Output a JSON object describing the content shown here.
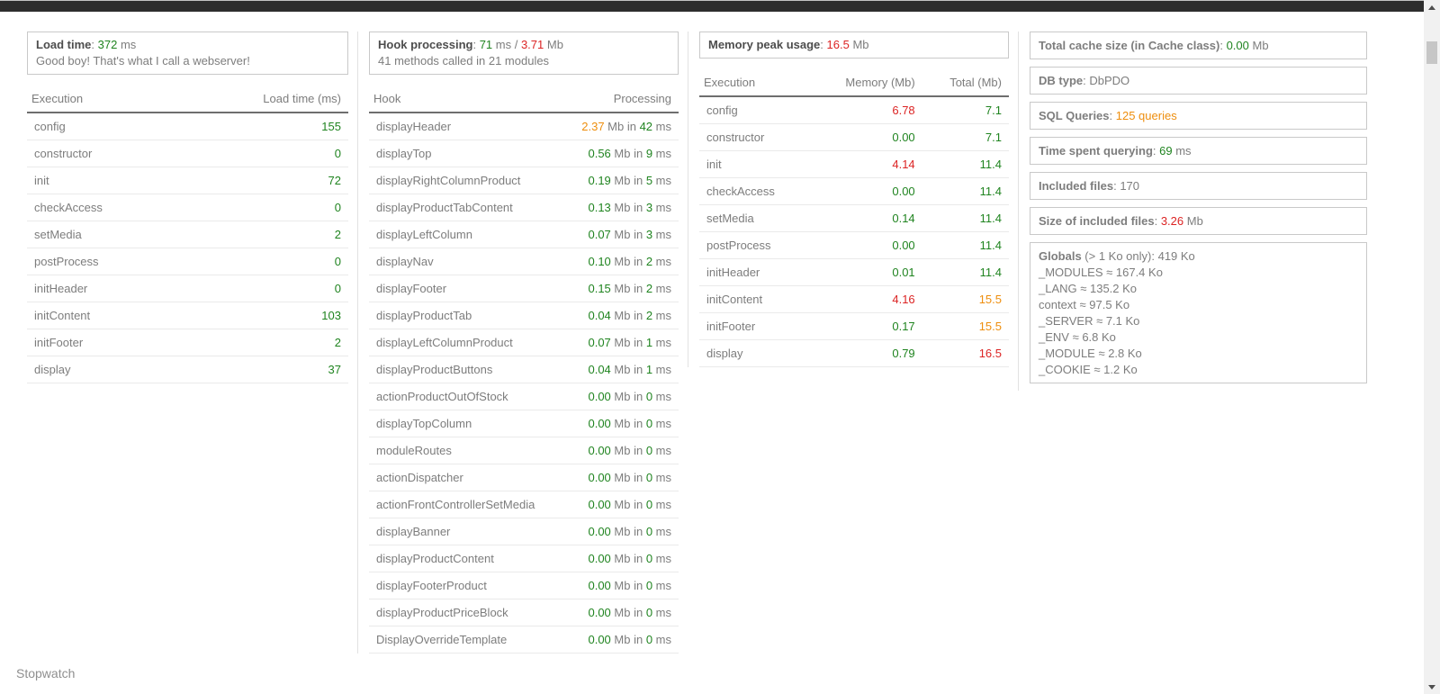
{
  "colors": {
    "green": "#208420",
    "red": "#dc2424",
    "orange": "#ee8e0e",
    "text_gray": "#7d7d7d",
    "label_gray": "#4d4d4d",
    "topbar": "#2d2d2d"
  },
  "load_panel": {
    "summary": {
      "label": "Load time",
      "parts": [
        {
          "text": ": ",
          "color": "gray"
        },
        {
          "text": "372",
          "color": "green"
        },
        {
          "text": " ms",
          "color": "gray"
        }
      ],
      "note": "Good boy! That's what I call a webserver!"
    },
    "table": {
      "headers": [
        "Execution",
        "Load time (ms)"
      ],
      "rows": [
        {
          "name": "config",
          "value": "155",
          "color": "green"
        },
        {
          "name": "constructor",
          "value": "0",
          "color": "green"
        },
        {
          "name": "init",
          "value": "72",
          "color": "green"
        },
        {
          "name": "checkAccess",
          "value": "0",
          "color": "green"
        },
        {
          "name": "setMedia",
          "value": "2",
          "color": "green"
        },
        {
          "name": "postProcess",
          "value": "0",
          "color": "green"
        },
        {
          "name": "initHeader",
          "value": "0",
          "color": "green"
        },
        {
          "name": "initContent",
          "value": "103",
          "color": "green"
        },
        {
          "name": "initFooter",
          "value": "2",
          "color": "green"
        },
        {
          "name": "display",
          "value": "37",
          "color": "green"
        }
      ]
    }
  },
  "hook_panel": {
    "summary": {
      "label": "Hook processing",
      "parts": [
        {
          "text": ": ",
          "color": "gray"
        },
        {
          "text": "71",
          "color": "green"
        },
        {
          "text": " ms / ",
          "color": "gray"
        },
        {
          "text": "3.71",
          "color": "red"
        },
        {
          "text": " Mb",
          "color": "gray"
        }
      ],
      "note": "41 methods called in 21 modules"
    },
    "mb_in": " Mb in ",
    "ms": " ms",
    "table": {
      "headers": [
        "Hook",
        "Processing"
      ],
      "rows": [
        {
          "name": "displayHeader",
          "mem": "2.37",
          "mem_color": "orange",
          "time": "42",
          "time_color": "green"
        },
        {
          "name": "displayTop",
          "mem": "0.56",
          "mem_color": "green",
          "time": "9",
          "time_color": "green"
        },
        {
          "name": "displayRightColumnProduct",
          "mem": "0.19",
          "mem_color": "green",
          "time": "5",
          "time_color": "green"
        },
        {
          "name": "displayProductTabContent",
          "mem": "0.13",
          "mem_color": "green",
          "time": "3",
          "time_color": "green"
        },
        {
          "name": "displayLeftColumn",
          "mem": "0.07",
          "mem_color": "green",
          "time": "3",
          "time_color": "green"
        },
        {
          "name": "displayNav",
          "mem": "0.10",
          "mem_color": "green",
          "time": "2",
          "time_color": "green"
        },
        {
          "name": "displayFooter",
          "mem": "0.15",
          "mem_color": "green",
          "time": "2",
          "time_color": "green"
        },
        {
          "name": "displayProductTab",
          "mem": "0.04",
          "mem_color": "green",
          "time": "2",
          "time_color": "green"
        },
        {
          "name": "displayLeftColumnProduct",
          "mem": "0.07",
          "mem_color": "green",
          "time": "1",
          "time_color": "green"
        },
        {
          "name": "displayProductButtons",
          "mem": "0.04",
          "mem_color": "green",
          "time": "1",
          "time_color": "green"
        },
        {
          "name": "actionProductOutOfStock",
          "mem": "0.00",
          "mem_color": "green",
          "time": "0",
          "time_color": "green"
        },
        {
          "name": "displayTopColumn",
          "mem": "0.00",
          "mem_color": "green",
          "time": "0",
          "time_color": "green"
        },
        {
          "name": "moduleRoutes",
          "mem": "0.00",
          "mem_color": "green",
          "time": "0",
          "time_color": "green"
        },
        {
          "name": "actionDispatcher",
          "mem": "0.00",
          "mem_color": "green",
          "time": "0",
          "time_color": "green"
        },
        {
          "name": "actionFrontControllerSetMedia",
          "mem": "0.00",
          "mem_color": "green",
          "time": "0",
          "time_color": "green"
        },
        {
          "name": "displayBanner",
          "mem": "0.00",
          "mem_color": "green",
          "time": "0",
          "time_color": "green"
        },
        {
          "name": "displayProductContent",
          "mem": "0.00",
          "mem_color": "green",
          "time": "0",
          "time_color": "green"
        },
        {
          "name": "displayFooterProduct",
          "mem": "0.00",
          "mem_color": "green",
          "time": "0",
          "time_color": "green"
        },
        {
          "name": "displayProductPriceBlock",
          "mem": "0.00",
          "mem_color": "green",
          "time": "0",
          "time_color": "green"
        },
        {
          "name": "DisplayOverrideTemplate",
          "mem": "0.00",
          "mem_color": "green",
          "time": "0",
          "time_color": "green"
        }
      ]
    }
  },
  "memory_panel": {
    "summary": {
      "label": "Memory peak usage",
      "parts": [
        {
          "text": ": ",
          "color": "gray"
        },
        {
          "text": "16.5",
          "color": "red"
        },
        {
          "text": " Mb",
          "color": "gray"
        }
      ]
    },
    "table": {
      "headers": [
        "Execution",
        "Memory (Mb)",
        "Total (Mb)"
      ],
      "rows": [
        {
          "name": "config",
          "memory": "6.78",
          "memory_color": "red",
          "total": "7.1",
          "total_color": "green"
        },
        {
          "name": "constructor",
          "memory": "0.00",
          "memory_color": "green",
          "total": "7.1",
          "total_color": "green"
        },
        {
          "name": "init",
          "memory": "4.14",
          "memory_color": "red",
          "total": "11.4",
          "total_color": "green"
        },
        {
          "name": "checkAccess",
          "memory": "0.00",
          "memory_color": "green",
          "total": "11.4",
          "total_color": "green"
        },
        {
          "name": "setMedia",
          "memory": "0.14",
          "memory_color": "green",
          "total": "11.4",
          "total_color": "green"
        },
        {
          "name": "postProcess",
          "memory": "0.00",
          "memory_color": "green",
          "total": "11.4",
          "total_color": "green"
        },
        {
          "name": "initHeader",
          "memory": "0.01",
          "memory_color": "green",
          "total": "11.4",
          "total_color": "green"
        },
        {
          "name": "initContent",
          "memory": "4.16",
          "memory_color": "red",
          "total": "15.5",
          "total_color": "orange"
        },
        {
          "name": "initFooter",
          "memory": "0.17",
          "memory_color": "green",
          "total": "15.5",
          "total_color": "orange"
        },
        {
          "name": "display",
          "memory": "0.79",
          "memory_color": "green",
          "total": "16.5",
          "total_color": "red"
        }
      ]
    }
  },
  "info_panel": {
    "boxes": [
      {
        "label": "Total cache size (in Cache class)",
        "parts": [
          {
            "text": ": ",
            "color": "gray"
          },
          {
            "text": "0.00",
            "color": "green"
          },
          {
            "text": " Mb",
            "color": "gray"
          }
        ]
      },
      {
        "label": "DB type",
        "parts": [
          {
            "text": ": ",
            "color": "gray"
          },
          {
            "text": "DbPDO",
            "color": "gray"
          }
        ]
      },
      {
        "label": "SQL Queries",
        "parts": [
          {
            "text": ": ",
            "color": "gray"
          },
          {
            "text": "125 queries",
            "color": "orange"
          }
        ]
      },
      {
        "label": "Time spent querying",
        "parts": [
          {
            "text": ": ",
            "color": "gray"
          },
          {
            "text": "69",
            "color": "green"
          },
          {
            "text": " ms",
            "color": "gray"
          }
        ]
      },
      {
        "label": "Included files",
        "parts": [
          {
            "text": ": ",
            "color": "gray"
          },
          {
            "text": "170",
            "color": "gray"
          }
        ]
      },
      {
        "label": "Size of included files",
        "parts": [
          {
            "text": ": ",
            "color": "gray"
          },
          {
            "text": "3.26",
            "color": "red"
          },
          {
            "text": " Mb",
            "color": "gray"
          }
        ]
      },
      {
        "label": "Globals",
        "parts": [
          {
            "text": " (> 1 Ko only): 419 Ko",
            "color": "gray"
          }
        ],
        "lines": [
          "_MODULES ≈ 167.4 Ko",
          "_LANG ≈ 135.2 Ko",
          "context ≈ 97.5 Ko",
          "_SERVER ≈ 7.1 Ko",
          "_ENV ≈ 6.8 Ko",
          "_MODULE ≈ 2.8 Ko",
          "_COOKIE ≈ 1.2 Ko"
        ]
      }
    ]
  },
  "stopwatch": {
    "title": "Stopwatch"
  }
}
